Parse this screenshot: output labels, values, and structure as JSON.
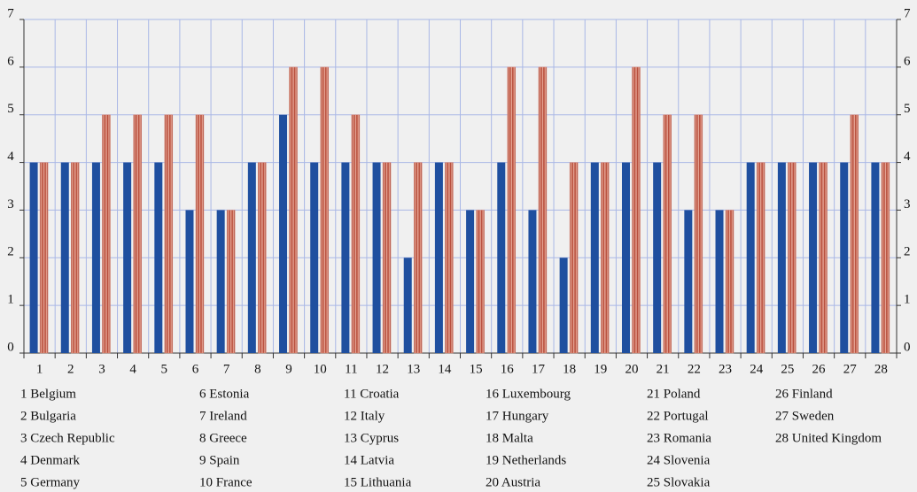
{
  "chart_data": {
    "type": "bar",
    "categories": [
      "1",
      "2",
      "3",
      "4",
      "5",
      "6",
      "7",
      "8",
      "9",
      "10",
      "11",
      "12",
      "13",
      "14",
      "15",
      "16",
      "17",
      "18",
      "19",
      "20",
      "21",
      "22",
      "23",
      "24",
      "25",
      "26",
      "27",
      "28"
    ],
    "series": [
      {
        "color": "#1f4f9f",
        "values": [
          4,
          4,
          4,
          4,
          4,
          3,
          3,
          4,
          5,
          4,
          4,
          4,
          2,
          4,
          3,
          4,
          3,
          2,
          4,
          4,
          4,
          3,
          3,
          4,
          4,
          4,
          4,
          4
        ]
      },
      {
        "color": "#dc8f7b",
        "values": [
          4,
          4,
          5,
          5,
          5,
          5,
          3,
          4,
          6,
          6,
          5,
          4,
          4,
          4,
          3,
          6,
          6,
          4,
          4,
          6,
          5,
          5,
          3,
          4,
          4,
          4,
          5,
          4
        ]
      }
    ],
    "ylim": [
      0,
      7
    ],
    "yticks": [
      0,
      1,
      2,
      3,
      4,
      5,
      6,
      7
    ],
    "y2lim": [
      0,
      7
    ],
    "y2ticks": [
      0,
      1,
      2,
      3,
      4,
      5,
      6,
      7
    ],
    "grid": true,
    "key": [
      "1 Belgium",
      "2 Bulgaria",
      "3 Czech Republic",
      "4 Denmark",
      "5 Germany",
      "6 Estonia",
      "7 Ireland",
      "8 Greece",
      "9 Spain",
      "10 France",
      "11 Croatia",
      "12 Italy",
      "13 Cyprus",
      "14 Latvia",
      "15 Lithuania",
      "16 Luxembourg",
      "17 Hungary",
      "18 Malta",
      "19 Netherlands",
      "20 Austria",
      "21 Poland",
      "22 Portugal",
      "23 Romania",
      "24 Slovenia",
      "25 Slovakia",
      "26 Finland",
      "27 Sweden",
      "28 United Kingdom"
    ]
  }
}
